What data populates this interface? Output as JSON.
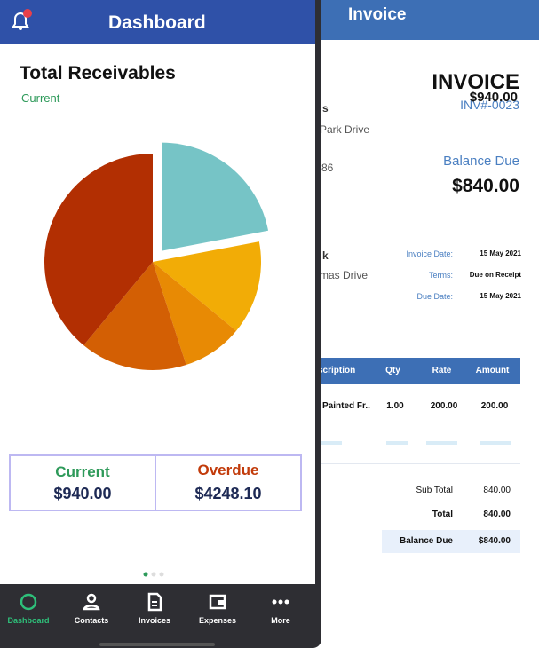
{
  "chart_data": {
    "type": "pie",
    "values": [
      22,
      14,
      9,
      16,
      39
    ],
    "colors": [
      "#76c4c6",
      "#f2ac06",
      "#e88a04",
      "#d35f04",
      "#b22f02"
    ],
    "explode": [
      true,
      false,
      false,
      false,
      false
    ]
  },
  "dashboard": {
    "title": "Dashboard",
    "heading": "Total Receivables",
    "current_label": "Current",
    "current_amount": "$940.00",
    "summary": {
      "current_label": "Current",
      "current": "$940.00",
      "overdue_label": "Overdue",
      "overdue": "$4248.10"
    },
    "nav": [
      "Dashboard",
      "Contacts",
      "Invoices",
      "Expenses",
      "More"
    ]
  },
  "invoice": {
    "header": "Invoice",
    "title": "INVOICE",
    "number": "INV#-0023",
    "client_lines": [
      "s",
      "Park Drive",
      "86"
    ],
    "ship_lines": [
      "k",
      "mas Drive"
    ],
    "balance_due_label": "Balance Due",
    "balance_due": "$840.00",
    "details": [
      [
        "Invoice Date:",
        "15 May 2021"
      ],
      [
        "Terms:",
        "Due on Receipt"
      ],
      [
        "Due Date:",
        "15 May 2021"
      ]
    ],
    "table": {
      "columns": [
        "scription",
        "Qty",
        "Rate",
        "Amount"
      ],
      "rows": [
        [
          "Painted Fr..",
          "1.00",
          "200.00",
          "200.00"
        ]
      ]
    },
    "totals": [
      [
        "Sub Total",
        "840.00"
      ],
      [
        "Total",
        "840.00"
      ],
      [
        "Balance Due",
        "$840.00"
      ]
    ]
  }
}
